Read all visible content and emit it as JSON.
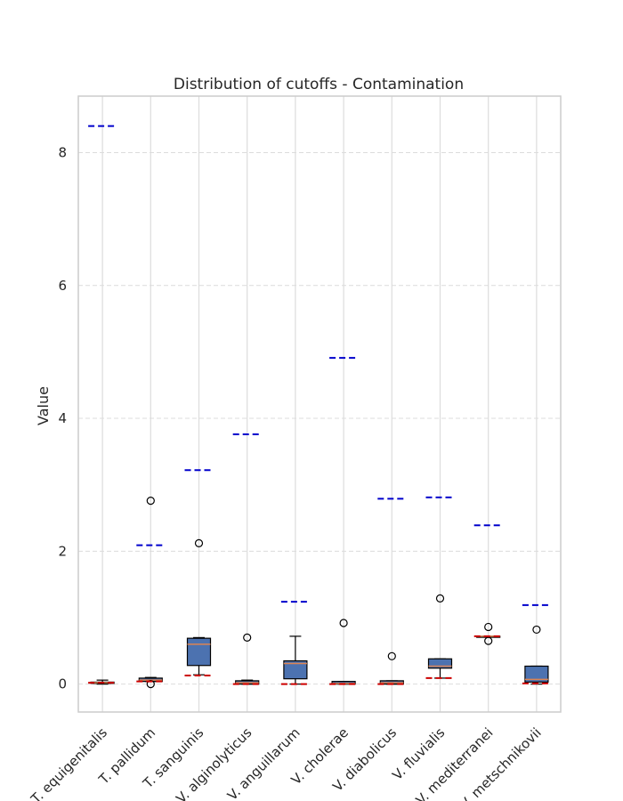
{
  "chart_data": {
    "type": "box",
    "title": "Distribution of cutoffs - Contamination",
    "xlabel": "",
    "ylabel": "Value",
    "ylim": [
      -0.42,
      8.85
    ],
    "yticks": [
      0,
      2,
      4,
      6,
      8
    ],
    "grid": true,
    "categories": [
      "T. equigenitalis",
      "T. pallidum",
      "T. sanguinis",
      "V. alginolyticus",
      "V. anguillarum",
      "V. cholerae",
      "V. diabolicus",
      "V. fluvialis",
      "V. mediterranei",
      "V. metschnikovii"
    ],
    "boxes": [
      {
        "q1": 0.01,
        "median": 0.02,
        "q3": 0.03,
        "whisker_low": 0.0,
        "whisker_high": 0.06,
        "outliers": []
      },
      {
        "q1": 0.04,
        "median": 0.06,
        "q3": 0.09,
        "whisker_low": 0.04,
        "whisker_high": 0.1,
        "outliers": [
          0.0,
          2.76
        ]
      },
      {
        "q1": 0.28,
        "median": 0.6,
        "q3": 0.69,
        "whisker_low": 0.14,
        "whisker_high": 0.7,
        "outliers": [
          2.12
        ]
      },
      {
        "q1": 0.0,
        "median": 0.02,
        "q3": 0.05,
        "whisker_low": 0.0,
        "whisker_high": 0.06,
        "outliers": [
          0.7
        ]
      },
      {
        "q1": 0.08,
        "median": 0.31,
        "q3": 0.35,
        "whisker_low": 0.0,
        "whisker_high": 0.72,
        "outliers": []
      },
      {
        "q1": 0.0,
        "median": 0.01,
        "q3": 0.04,
        "whisker_low": 0.0,
        "whisker_high": 0.04,
        "outliers": [
          0.92
        ]
      },
      {
        "q1": 0.0,
        "median": 0.02,
        "q3": 0.05,
        "whisker_low": 0.0,
        "whisker_high": 0.05,
        "outliers": [
          0.42
        ]
      },
      {
        "q1": 0.24,
        "median": 0.27,
        "q3": 0.38,
        "whisker_low": 0.09,
        "whisker_high": 0.38,
        "outliers": [
          1.29
        ]
      },
      {
        "q1": 0.72,
        "median": 0.72,
        "q3": 0.72,
        "whisker_low": 0.72,
        "whisker_high": 0.72,
        "outliers": [
          0.86,
          0.65
        ]
      },
      {
        "q1": 0.03,
        "median": 0.07,
        "q3": 0.27,
        "whisker_low": 0.0,
        "whisker_high": 0.27,
        "outliers": [
          0.82
        ]
      }
    ],
    "upper_cutoffs": [
      8.4,
      2.09,
      3.22,
      3.76,
      1.24,
      4.91,
      2.79,
      2.81,
      2.39,
      1.19
    ],
    "lower_cutoffs": [
      0.02,
      0.04,
      0.13,
      0.0,
      0.0,
      0.0,
      0.0,
      0.09,
      0.72,
      0.01
    ],
    "colors": {
      "box_fill": "#4C72B0",
      "box_edge": "#000000",
      "median": "#DD8452",
      "upper_cutoff": "#0000CC",
      "lower_cutoff": "#CC0000",
      "grid": "#DCDCDC",
      "axes_edge": "#CCCCCC"
    }
  }
}
